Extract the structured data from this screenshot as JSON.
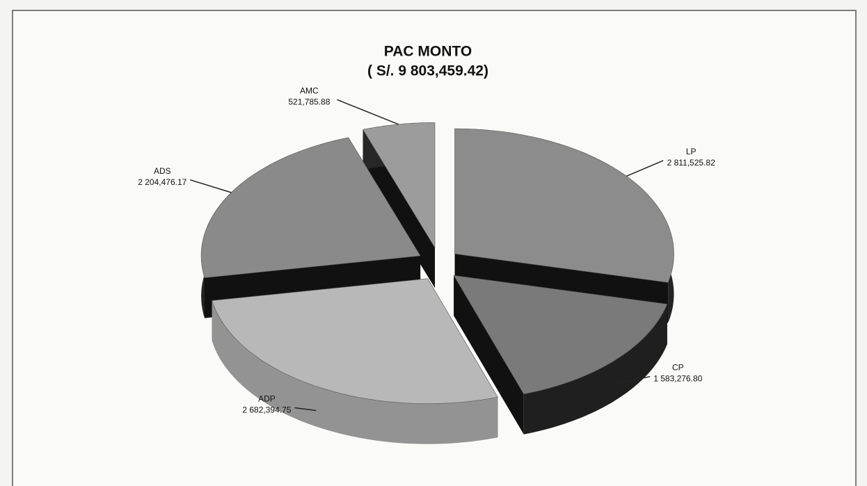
{
  "chart_data": {
    "type": "pie3d",
    "title": "PAC MONTO",
    "subtitle": "( S/. 9 803,459.42)",
    "categories": [
      "LP",
      "CP",
      "ADP",
      "ADS",
      "AMC"
    ],
    "values": [
      2811525.82,
      1583276.8,
      2682394.75,
      2204476.17,
      521785.88
    ],
    "value_labels": [
      "2 811,525.82",
      "1 583,276.80",
      "2 682,394.75",
      "2 204,476.17",
      "521,785.88"
    ],
    "colors": [
      "#8c8c8c",
      "#7a7a7a",
      "#b8b8b8",
      "#8a8a8a",
      "#9c9c9c"
    ]
  }
}
